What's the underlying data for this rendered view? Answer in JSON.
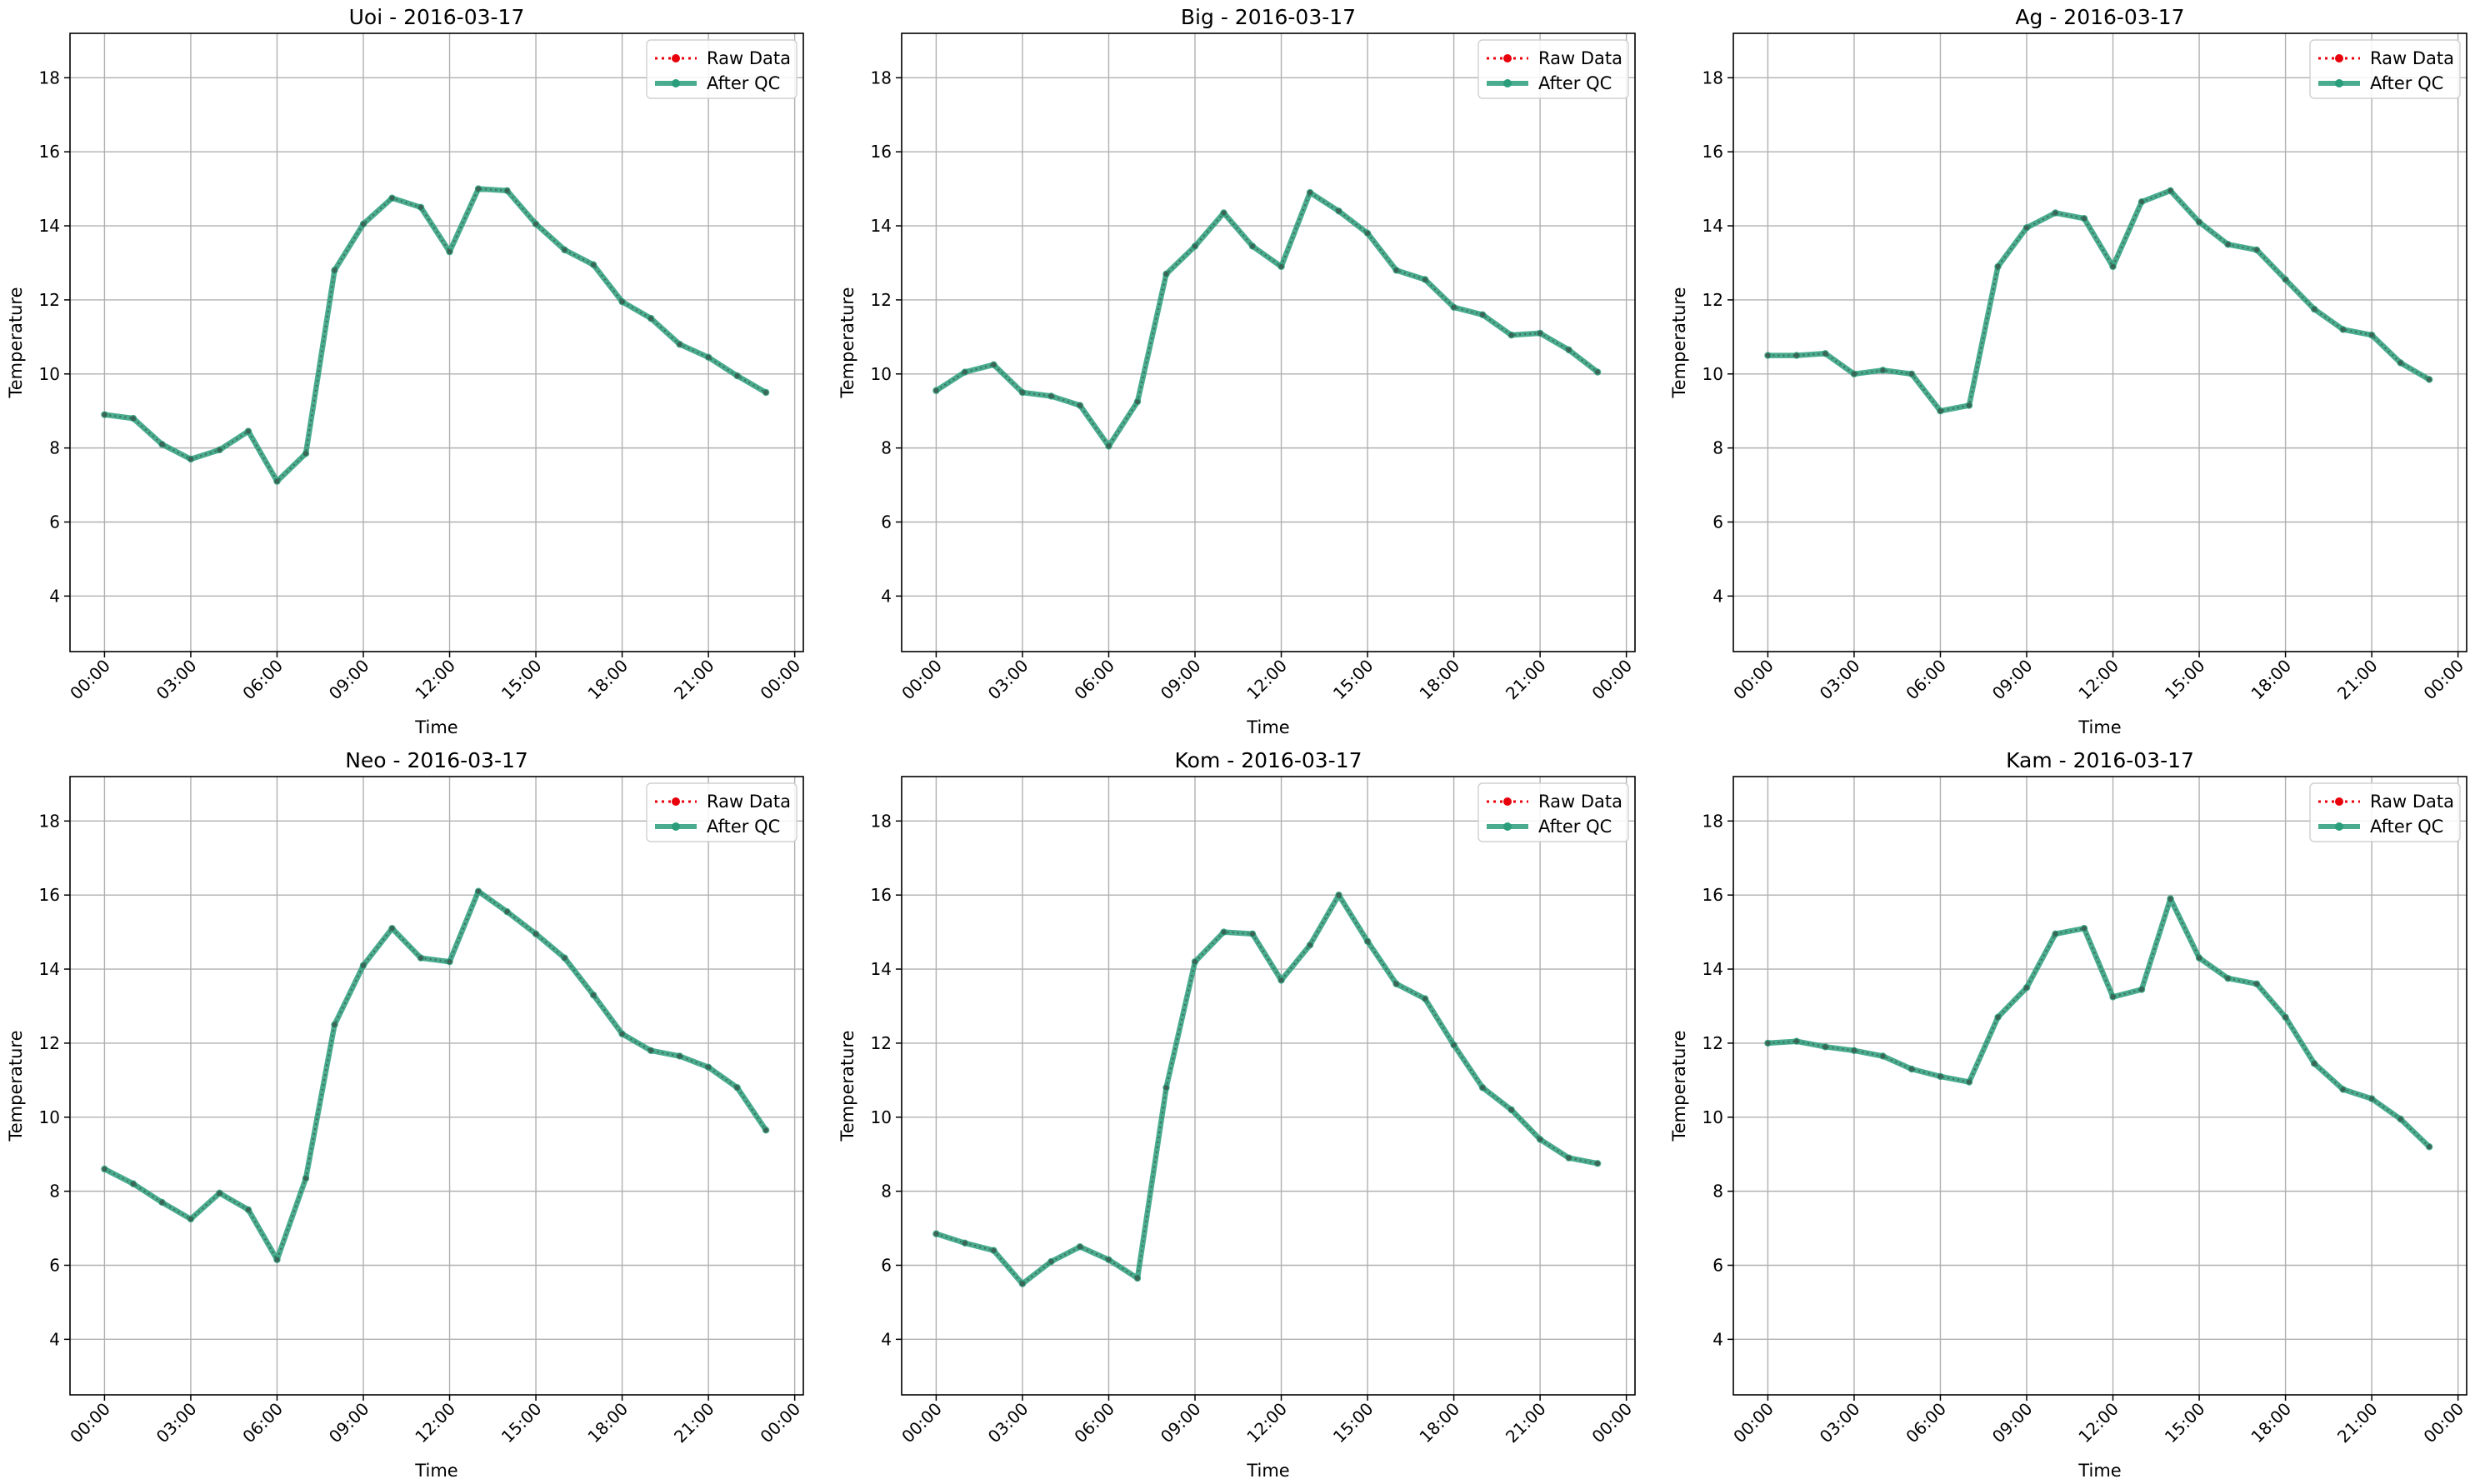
{
  "colors": {
    "raw": "#e8000b",
    "qc": "#2a9d7a",
    "grid": "#b0b0b0",
    "axis": "#000000"
  },
  "legend": {
    "placement": "top-right"
  },
  "chart_data": [
    {
      "type": "line",
      "title": "Uoi - 2016-03-17",
      "xlabel": "Time",
      "ylabel": "Temperature",
      "ylim": [
        2.5,
        19.2
      ],
      "yticks": [
        4,
        6,
        8,
        10,
        12,
        14,
        16,
        18
      ],
      "xticks": [
        "00:00",
        "03:00",
        "06:00",
        "09:00",
        "12:00",
        "15:00",
        "18:00",
        "21:00",
        "00:00"
      ],
      "x": [
        0,
        1,
        2,
        3,
        4,
        5,
        6,
        7,
        8,
        9,
        10,
        11,
        12,
        13,
        14,
        15,
        16,
        17,
        18,
        19,
        20,
        21,
        22,
        23
      ],
      "grid": true,
      "series": [
        {
          "name": "Raw Data",
          "values": [
            8.9,
            8.8,
            8.1,
            7.7,
            7.95,
            8.45,
            7.1,
            7.85,
            12.8,
            14.05,
            14.75,
            14.5,
            13.3,
            15.0,
            14.95,
            14.05,
            13.35,
            12.95,
            11.95,
            11.5,
            10.8,
            10.45,
            9.95,
            9.5
          ]
        },
        {
          "name": "After QC",
          "values": [
            8.9,
            8.8,
            8.1,
            7.7,
            7.95,
            8.45,
            7.1,
            7.85,
            12.8,
            14.05,
            14.75,
            14.5,
            13.3,
            15.0,
            14.95,
            14.05,
            13.35,
            12.95,
            11.95,
            11.5,
            10.8,
            10.45,
            9.95,
            9.5
          ]
        }
      ]
    },
    {
      "type": "line",
      "title": "Big - 2016-03-17",
      "xlabel": "Time",
      "ylabel": "Temperature",
      "ylim": [
        2.5,
        19.2
      ],
      "yticks": [
        4,
        6,
        8,
        10,
        12,
        14,
        16,
        18
      ],
      "xticks": [
        "00:00",
        "03:00",
        "06:00",
        "09:00",
        "12:00",
        "15:00",
        "18:00",
        "21:00",
        "00:00"
      ],
      "x": [
        0,
        1,
        2,
        3,
        4,
        5,
        6,
        7,
        8,
        9,
        10,
        11,
        12,
        13,
        14,
        15,
        16,
        17,
        18,
        19,
        20,
        21,
        22,
        23
      ],
      "grid": true,
      "series": [
        {
          "name": "Raw Data",
          "values": [
            9.55,
            10.05,
            10.25,
            9.5,
            9.4,
            9.15,
            8.05,
            9.25,
            12.7,
            13.45,
            14.35,
            13.45,
            12.9,
            14.9,
            14.4,
            13.8,
            12.8,
            12.55,
            11.8,
            11.6,
            11.05,
            11.1,
            10.65,
            10.05
          ]
        },
        {
          "name": "After QC",
          "values": [
            9.55,
            10.05,
            10.25,
            9.5,
            9.4,
            9.15,
            8.05,
            9.25,
            12.7,
            13.45,
            14.35,
            13.45,
            12.9,
            14.9,
            14.4,
            13.8,
            12.8,
            12.55,
            11.8,
            11.6,
            11.05,
            11.1,
            10.65,
            10.05
          ]
        }
      ]
    },
    {
      "type": "line",
      "title": "Ag - 2016-03-17",
      "xlabel": "Time",
      "ylabel": "Temperature",
      "ylim": [
        2.5,
        19.2
      ],
      "yticks": [
        4,
        6,
        8,
        10,
        12,
        14,
        16,
        18
      ],
      "xticks": [
        "00:00",
        "03:00",
        "06:00",
        "09:00",
        "12:00",
        "15:00",
        "18:00",
        "21:00",
        "00:00"
      ],
      "x": [
        0,
        1,
        2,
        3,
        4,
        5,
        6,
        7,
        8,
        9,
        10,
        11,
        12,
        13,
        14,
        15,
        16,
        17,
        18,
        19,
        20,
        21,
        22,
        23
      ],
      "grid": true,
      "series": [
        {
          "name": "Raw Data",
          "values": [
            10.5,
            10.5,
            10.55,
            10.0,
            10.1,
            10.0,
            9.0,
            9.15,
            12.9,
            13.95,
            14.35,
            14.2,
            12.9,
            14.65,
            14.95,
            14.1,
            13.5,
            13.35,
            12.55,
            11.75,
            11.2,
            11.05,
            10.3,
            9.85
          ]
        },
        {
          "name": "After QC",
          "values": [
            10.5,
            10.5,
            10.55,
            10.0,
            10.1,
            10.0,
            9.0,
            9.15,
            12.9,
            13.95,
            14.35,
            14.2,
            12.9,
            14.65,
            14.95,
            14.1,
            13.5,
            13.35,
            12.55,
            11.75,
            11.2,
            11.05,
            10.3,
            9.85
          ]
        }
      ]
    },
    {
      "type": "line",
      "title": "Neo - 2016-03-17",
      "xlabel": "Time",
      "ylabel": "Temperature",
      "ylim": [
        2.5,
        19.2
      ],
      "yticks": [
        4,
        6,
        8,
        10,
        12,
        14,
        16,
        18
      ],
      "xticks": [
        "00:00",
        "03:00",
        "06:00",
        "09:00",
        "12:00",
        "15:00",
        "18:00",
        "21:00",
        "00:00"
      ],
      "x": [
        0,
        1,
        2,
        3,
        4,
        5,
        6,
        7,
        8,
        9,
        10,
        11,
        12,
        13,
        14,
        15,
        16,
        17,
        18,
        19,
        20,
        21,
        22,
        23
      ],
      "grid": true,
      "series": [
        {
          "name": "Raw Data",
          "values": [
            8.6,
            8.2,
            7.7,
            7.25,
            7.95,
            7.5,
            6.15,
            8.35,
            12.5,
            14.1,
            15.1,
            14.3,
            14.2,
            16.1,
            15.55,
            14.95,
            14.3,
            13.3,
            12.25,
            11.8,
            11.65,
            11.35,
            10.8,
            9.65
          ]
        },
        {
          "name": "After QC",
          "values": [
            8.6,
            8.2,
            7.7,
            7.25,
            7.95,
            7.5,
            6.15,
            8.35,
            12.5,
            14.1,
            15.1,
            14.3,
            14.2,
            16.1,
            15.55,
            14.95,
            14.3,
            13.3,
            12.25,
            11.8,
            11.65,
            11.35,
            10.8,
            9.65
          ]
        }
      ]
    },
    {
      "type": "line",
      "title": "Kom - 2016-03-17",
      "xlabel": "Time",
      "ylabel": "Temperature",
      "ylim": [
        2.5,
        19.2
      ],
      "yticks": [
        4,
        6,
        8,
        10,
        12,
        14,
        16,
        18
      ],
      "xticks": [
        "00:00",
        "03:00",
        "06:00",
        "09:00",
        "12:00",
        "15:00",
        "18:00",
        "21:00",
        "00:00"
      ],
      "x": [
        0,
        1,
        2,
        3,
        4,
        5,
        6,
        7,
        8,
        9,
        10,
        11,
        12,
        13,
        14,
        15,
        16,
        17,
        18,
        19,
        20,
        21,
        22,
        23
      ],
      "grid": true,
      "series": [
        {
          "name": "Raw Data",
          "values": [
            6.85,
            6.6,
            6.4,
            5.5,
            6.1,
            6.5,
            6.15,
            5.65,
            10.8,
            14.2,
            15.0,
            14.95,
            13.7,
            14.65,
            16.0,
            14.75,
            13.6,
            13.2,
            11.95,
            10.8,
            10.2,
            9.4,
            8.9,
            8.75
          ]
        },
        {
          "name": "After QC",
          "values": [
            6.85,
            6.6,
            6.4,
            5.5,
            6.1,
            6.5,
            6.15,
            5.65,
            10.8,
            14.2,
            15.0,
            14.95,
            13.7,
            14.65,
            16.0,
            14.75,
            13.6,
            13.2,
            11.95,
            10.8,
            10.2,
            9.4,
            8.9,
            8.75
          ]
        }
      ]
    },
    {
      "type": "line",
      "title": "Kam - 2016-03-17",
      "xlabel": "Time",
      "ylabel": "Temperature",
      "ylim": [
        2.5,
        19.2
      ],
      "yticks": [
        4,
        6,
        8,
        10,
        12,
        14,
        16,
        18
      ],
      "xticks": [
        "00:00",
        "03:00",
        "06:00",
        "09:00",
        "12:00",
        "15:00",
        "18:00",
        "21:00",
        "00:00"
      ],
      "x": [
        0,
        1,
        2,
        3,
        4,
        5,
        6,
        7,
        8,
        9,
        10,
        11,
        12,
        13,
        14,
        15,
        16,
        17,
        18,
        19,
        20,
        21,
        22,
        23
      ],
      "grid": true,
      "series": [
        {
          "name": "Raw Data",
          "values": [
            12.0,
            12.05,
            11.9,
            11.8,
            11.65,
            11.3,
            11.1,
            10.95,
            12.7,
            13.5,
            14.95,
            15.1,
            13.25,
            13.45,
            15.9,
            14.3,
            13.75,
            13.6,
            12.7,
            11.45,
            10.75,
            10.5,
            9.95,
            9.2
          ]
        },
        {
          "name": "After QC",
          "values": [
            12.0,
            12.05,
            11.9,
            11.8,
            11.65,
            11.3,
            11.1,
            10.95,
            12.7,
            13.5,
            14.95,
            15.1,
            13.25,
            13.45,
            15.9,
            14.3,
            13.75,
            13.6,
            12.7,
            11.45,
            10.75,
            10.5,
            9.95,
            9.2
          ]
        }
      ]
    }
  ]
}
